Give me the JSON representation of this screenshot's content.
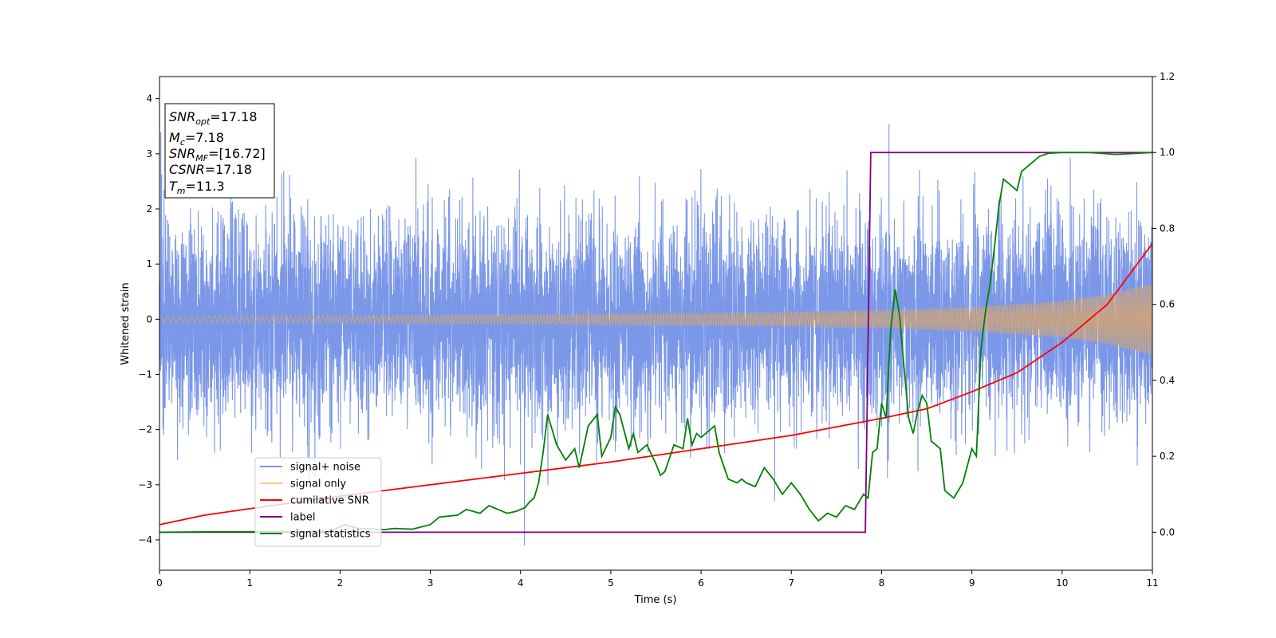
{
  "chart_data": {
    "type": "line",
    "xlabel": "Time (s)",
    "ylabel": "Whitened strain",
    "xlim": [
      0,
      11
    ],
    "ylim": [
      -4.55,
      4.4
    ],
    "y2lim": [
      -0.1,
      1.2
    ],
    "x_ticks": [
      "0",
      "1",
      "2",
      "3",
      "4",
      "5",
      "6",
      "7",
      "8",
      "9",
      "10",
      "11"
    ],
    "y_ticks": [
      "4",
      "3",
      "2",
      "1",
      "0",
      "−1",
      "−2",
      "−3",
      "−4"
    ],
    "y2_ticks": [
      "1.2",
      "1.0",
      "0.8",
      "0.6",
      "0.4",
      "0.2",
      "0.0"
    ],
    "annotation": {
      "snr_opt": {
        "symbol": "SNR",
        "sub": "opt",
        "value": "=17.18"
      },
      "mc": {
        "symbol": "M",
        "sub": "c",
        "value": "=7.18"
      },
      "snr_mf": {
        "symbol": "SNR",
        "sub": "MF",
        "value": "=[16.72]"
      },
      "csnr": {
        "symbol": "CSNR",
        "value": "=17.18"
      },
      "tm": {
        "symbol": "T",
        "sub": "m",
        "value": "=11.3"
      }
    },
    "legend": {
      "placement": "lower-left",
      "entries": [
        {
          "label": "signal+ noise",
          "color": "#7b97e8"
        },
        {
          "label": "signal only",
          "color": "#ffc77a"
        },
        {
          "label": "cumilative SNR",
          "color": "#ff0000"
        },
        {
          "label": "label",
          "color": "#800080"
        },
        {
          "label": "signal statistics",
          "color": "#008000"
        }
      ]
    },
    "series": [
      {
        "name": "signal+ noise",
        "axis": "left",
        "color": "#7b97e8",
        "description_values": {
          "typical_range": [
            -1.8,
            1.8
          ],
          "peaks_max": 3.98,
          "peaks_min": -4.1
        }
      },
      {
        "name": "signal only",
        "axis": "left",
        "color": "#ffc77a",
        "envelope": {
          "x": [
            0,
            2,
            4,
            6,
            7,
            8,
            9,
            10,
            10.5,
            11
          ],
          "amp": [
            0.06,
            0.07,
            0.09,
            0.11,
            0.13,
            0.16,
            0.22,
            0.33,
            0.45,
            0.65
          ]
        }
      },
      {
        "name": "cumilative SNR",
        "axis": "right",
        "color": "#ff0000",
        "x": [
          0,
          0.5,
          1,
          2,
          3,
          4,
          5,
          6,
          7,
          8,
          8.5,
          9,
          9.5,
          10,
          10.5,
          11
        ],
        "y": [
          0.02,
          0.045,
          0.062,
          0.095,
          0.125,
          0.155,
          0.185,
          0.22,
          0.255,
          0.3,
          0.325,
          0.37,
          0.42,
          0.5,
          0.6,
          0.76
        ]
      },
      {
        "name": "label",
        "axis": "right",
        "color": "#800080",
        "x": [
          0,
          7.82,
          7.88,
          11
        ],
        "y": [
          0,
          0,
          1,
          1
        ]
      },
      {
        "name": "signal statistics",
        "axis": "right",
        "color": "#008000",
        "x": [
          0,
          0.5,
          1,
          1.5,
          1.9,
          2.05,
          2.2,
          2.5,
          2.6,
          2.8,
          3.0,
          3.1,
          3.3,
          3.4,
          3.55,
          3.65,
          3.75,
          3.85,
          3.95,
          4.05,
          4.1,
          4.15,
          4.2,
          4.25,
          4.3,
          4.35,
          4.4,
          4.5,
          4.6,
          4.65,
          4.75,
          4.85,
          4.9,
          5.0,
          5.05,
          5.1,
          5.2,
          5.25,
          5.3,
          5.4,
          5.5,
          5.55,
          5.6,
          5.7,
          5.8,
          5.85,
          5.9,
          5.95,
          6.0,
          6.1,
          6.15,
          6.2,
          6.3,
          6.4,
          6.45,
          6.5,
          6.6,
          6.7,
          6.8,
          6.9,
          7.0,
          7.1,
          7.2,
          7.3,
          7.4,
          7.5,
          7.6,
          7.7,
          7.8,
          7.85,
          7.9,
          7.95,
          8.0,
          8.05,
          8.1,
          8.15,
          8.2,
          8.25,
          8.3,
          8.35,
          8.4,
          8.45,
          8.5,
          8.55,
          8.6,
          8.65,
          8.7,
          8.8,
          8.9,
          9.0,
          9.05,
          9.1,
          9.15,
          9.2,
          9.25,
          9.3,
          9.35,
          9.4,
          9.5,
          9.55,
          9.65,
          9.75,
          9.85,
          10.0,
          10.3,
          10.6,
          11.0
        ],
        "y": [
          0.0,
          0.001,
          0.001,
          0.002,
          0.003,
          0.02,
          0.01,
          0.007,
          0.01,
          0.008,
          0.02,
          0.04,
          0.045,
          0.06,
          0.05,
          0.07,
          0.06,
          0.05,
          0.055,
          0.065,
          0.08,
          0.09,
          0.13,
          0.21,
          0.31,
          0.27,
          0.23,
          0.19,
          0.22,
          0.17,
          0.28,
          0.31,
          0.2,
          0.25,
          0.33,
          0.31,
          0.22,
          0.26,
          0.21,
          0.23,
          0.18,
          0.15,
          0.16,
          0.23,
          0.22,
          0.3,
          0.23,
          0.26,
          0.25,
          0.27,
          0.28,
          0.21,
          0.14,
          0.13,
          0.14,
          0.13,
          0.12,
          0.17,
          0.14,
          0.1,
          0.13,
          0.1,
          0.06,
          0.03,
          0.05,
          0.04,
          0.07,
          0.06,
          0.1,
          0.09,
          0.21,
          0.22,
          0.34,
          0.3,
          0.53,
          0.64,
          0.57,
          0.43,
          0.3,
          0.26,
          0.32,
          0.36,
          0.34,
          0.24,
          0.23,
          0.22,
          0.11,
          0.09,
          0.13,
          0.22,
          0.2,
          0.48,
          0.58,
          0.65,
          0.75,
          0.86,
          0.93,
          0.92,
          0.9,
          0.95,
          0.97,
          0.99,
          0.998,
          1.0,
          1.0,
          0.995,
          1.0
        ]
      }
    ]
  }
}
